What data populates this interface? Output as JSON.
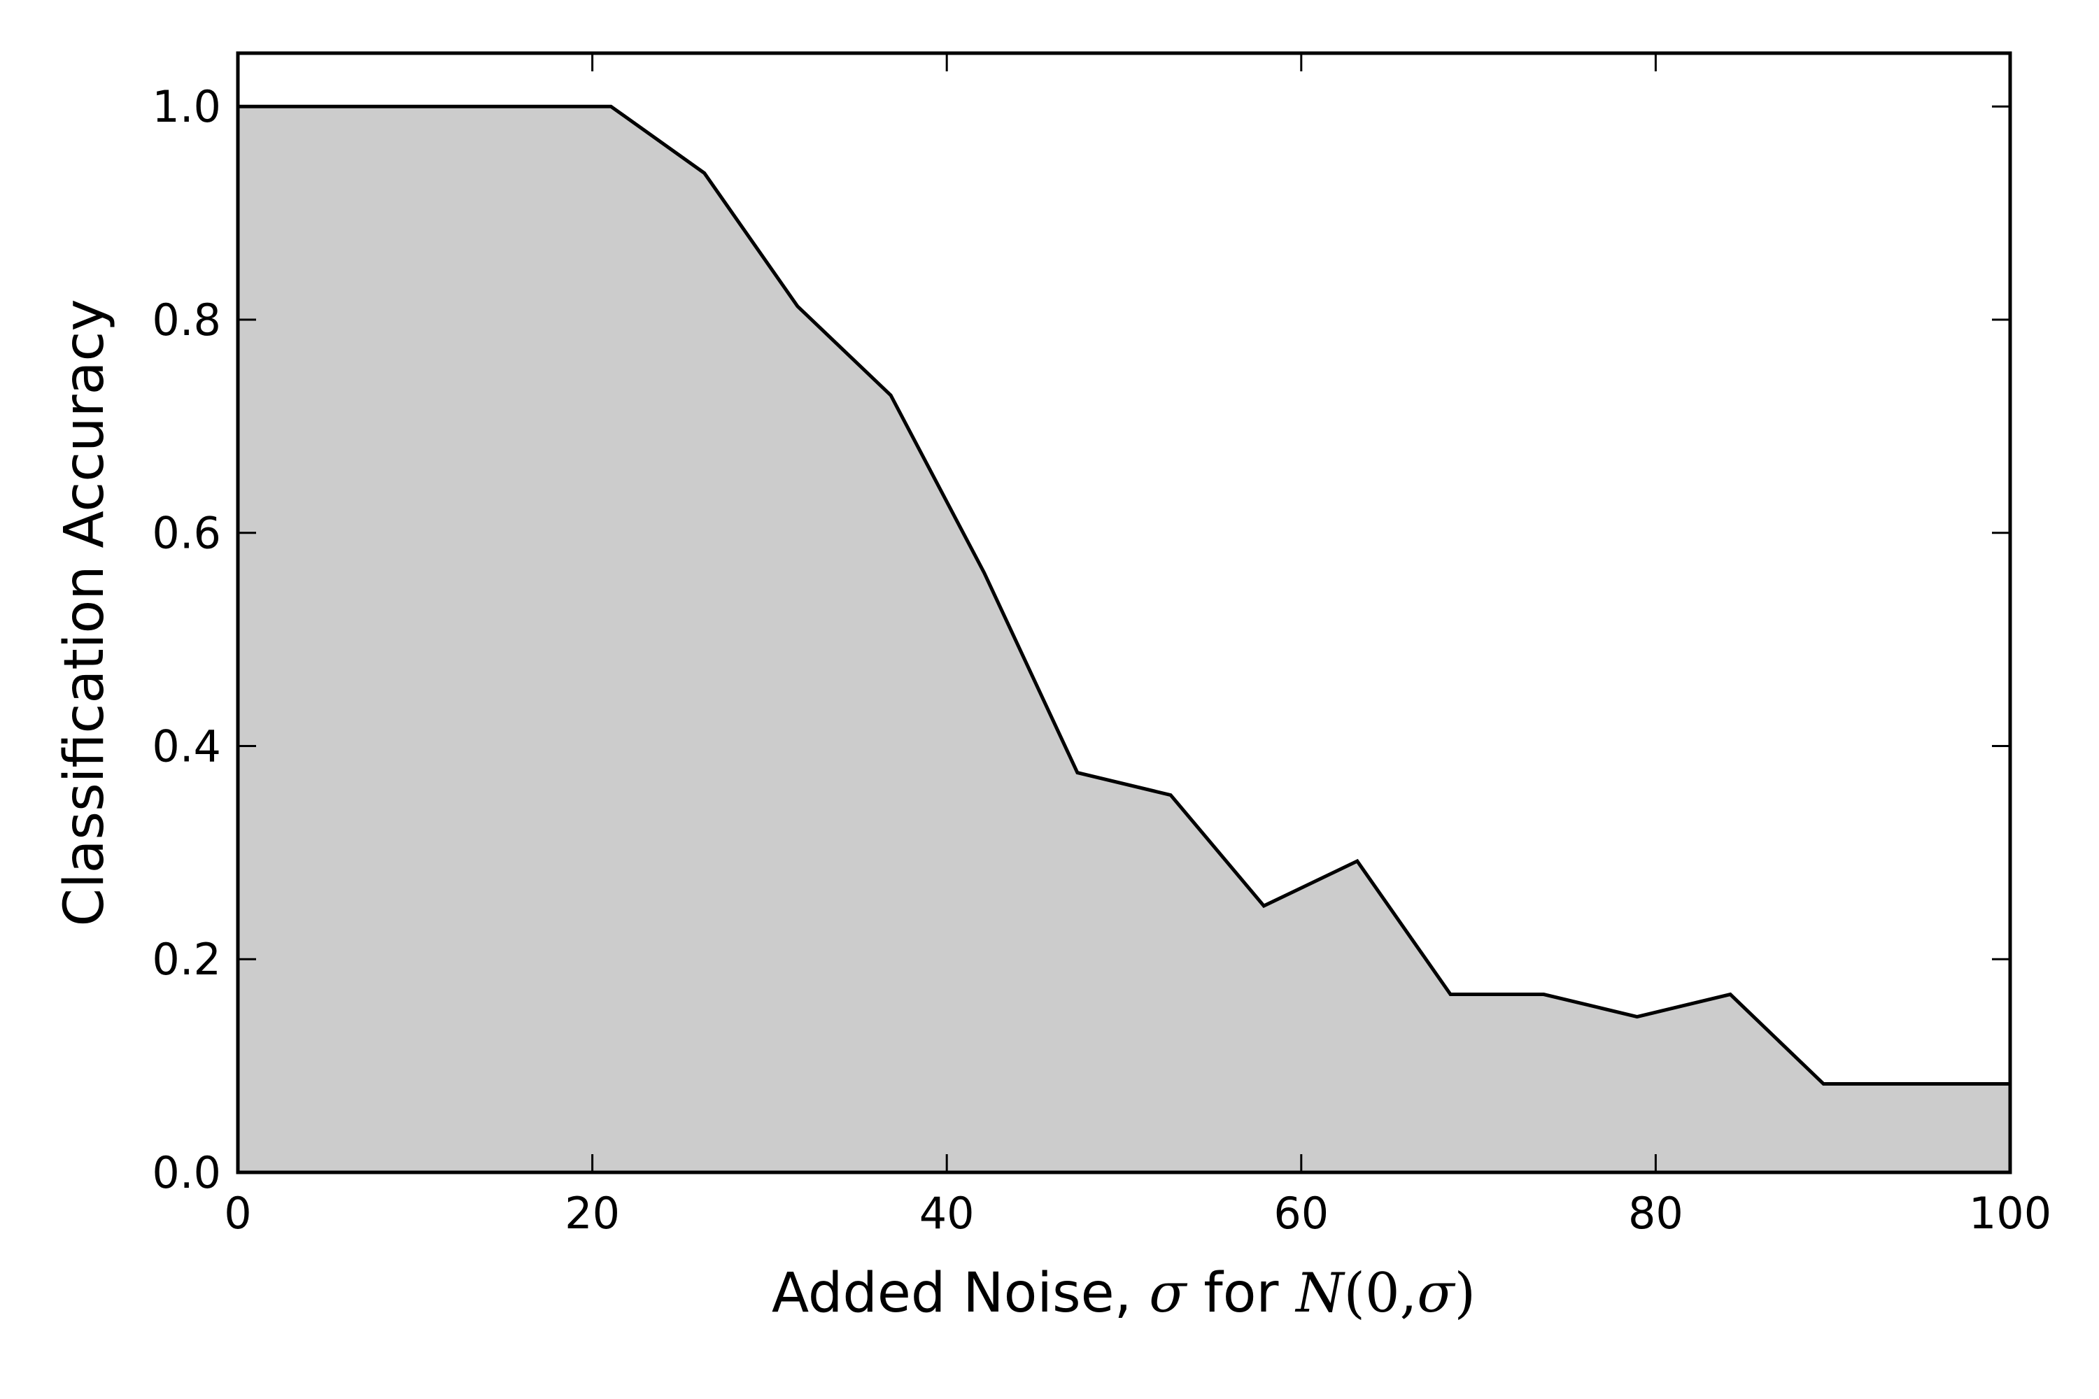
{
  "chart_data": {
    "type": "area",
    "title": "",
    "xlabel": "Added Noise, σ for N(0,σ)",
    "xlabel_parts": {
      "prefix": "Added Noise, ",
      "sigma": "σ",
      "middle": " for ",
      "n": "N",
      "open": "(0,",
      "sigma2": "σ",
      "close": ")"
    },
    "ylabel": "Classification Accuracy",
    "xlim": [
      0,
      100
    ],
    "ylim": [
      0.0,
      1.05
    ],
    "xticks": [
      0,
      20,
      40,
      60,
      80,
      100
    ],
    "xtick_labels": [
      "0",
      "20",
      "40",
      "60",
      "80",
      "100"
    ],
    "yticks": [
      0.0,
      0.2,
      0.4,
      0.6,
      0.8,
      1.0
    ],
    "ytick_labels": [
      "0.0",
      "0.2",
      "0.4",
      "0.6",
      "0.8",
      "1.0"
    ],
    "grid": false,
    "legend": "none",
    "series": [
      {
        "x": [
          0,
          5.26,
          10.53,
          15.79,
          21.05,
          26.32,
          31.58,
          36.84,
          42.11,
          47.37,
          52.63,
          57.89,
          63.16,
          68.42,
          73.68,
          78.95,
          84.21,
          89.47,
          94.74,
          100
        ],
        "y": [
          1.0,
          1.0,
          1.0,
          1.0,
          1.0,
          0.9375,
          0.8125,
          0.729,
          0.5625,
          0.375,
          0.354,
          0.25,
          0.292,
          0.167,
          0.167,
          0.146,
          0.167,
          0.083,
          0.083,
          0.083
        ],
        "fill_color": "#cccccc",
        "line_color": "#000000"
      }
    ]
  }
}
